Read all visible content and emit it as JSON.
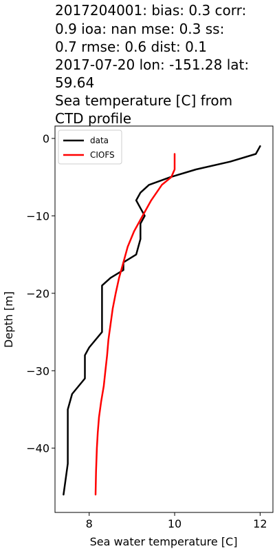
{
  "chart_data": {
    "type": "line",
    "title_lines": [
      "2017204001: bias: 0.3  corr:",
      "0.9  ioa: nan  mse: 0.3  ss:",
      "0.7  rmse: 0.6  dist: 0.1",
      "2017-07-20 lon: -151.28 lat:",
      "59.64",
      "Sea temperature [C] from",
      "CTD profile"
    ],
    "xlabel": "Sea water temperature [C]",
    "ylabel": "Depth [m]",
    "xlim": [
      7.2,
      12.3
    ],
    "ylim": [
      -48.3,
      1.6
    ],
    "xticks": [
      8,
      10,
      12
    ],
    "xtick_labels": [
      "8",
      "10",
      "12"
    ],
    "yticks": [
      0,
      -10,
      -20,
      -30,
      -40
    ],
    "ytick_labels": [
      "0",
      "−10",
      "−20",
      "−30",
      "−40"
    ],
    "legend": {
      "position": "upper-left"
    },
    "series": [
      {
        "name": "data",
        "color": "#000000",
        "x": [
          12.0,
          11.9,
          11.3,
          10.5,
          9.9,
          9.4,
          9.2,
          9.1,
          9.2,
          9.3,
          9.2,
          9.2,
          9.2,
          9.1,
          8.8,
          8.8,
          8.5,
          8.3,
          8.3,
          8.3,
          8.3,
          8.0,
          7.9,
          7.9,
          7.6,
          7.5,
          7.5,
          7.5,
          7.5,
          7.45,
          7.4
        ],
        "y": [
          -1,
          -2,
          -3,
          -4,
          -5,
          -6,
          -7,
          -8,
          -9,
          -10,
          -11,
          -12,
          -13,
          -15,
          -16,
          -17,
          -18,
          -19,
          -20,
          -22,
          -25,
          -27,
          -28,
          -31,
          -33,
          -35,
          -37,
          -40,
          -42,
          -44,
          -46
        ]
      },
      {
        "name": "CIOFS",
        "color": "#ff0000",
        "x": [
          10.0,
          10.0,
          10.0,
          9.92,
          9.7,
          9.45,
          9.25,
          9.05,
          8.9,
          8.8,
          8.7,
          8.62,
          8.55,
          8.5,
          8.45,
          8.42,
          8.38,
          8.34,
          8.28,
          8.23,
          8.2,
          8.18,
          8.16,
          8.15
        ],
        "y": [
          -2,
          -3,
          -4,
          -5,
          -6,
          -8,
          -10,
          -12,
          -14,
          -16,
          -18,
          -20,
          -22,
          -24,
          -26,
          -28,
          -30,
          -32,
          -34,
          -36,
          -38,
          -40,
          -43,
          -46
        ]
      }
    ]
  }
}
